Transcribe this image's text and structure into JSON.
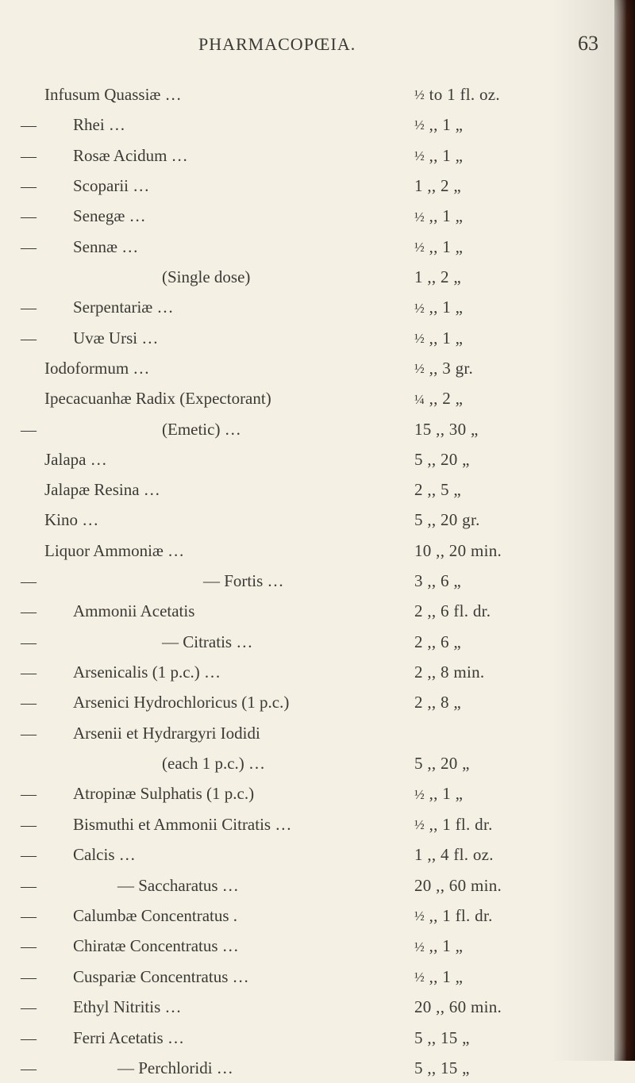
{
  "header": {
    "title": "PHARMACOPŒIA.",
    "pagenum": "63"
  },
  "entries": [
    {
      "left": "",
      "indent": 0,
      "name": "Infusum Quassiæ  …",
      "dose_from": "½",
      "dose_to": "1",
      "unit": "fl. oz."
    },
    {
      "left": "—",
      "indent": 1,
      "name": "Rhei  …",
      "dose_from": "½",
      "dose_to": "1",
      "unit": "„"
    },
    {
      "left": "—",
      "indent": 1,
      "name": "Rosæ Acidum  …",
      "dose_from": "½",
      "dose_to": "1",
      "unit": "„"
    },
    {
      "left": "—",
      "indent": 1,
      "name": "Scoparii  …",
      "dose_from": "1",
      "dose_to": "2",
      "unit": "„"
    },
    {
      "left": "—",
      "indent": 1,
      "name": "Senegæ  …",
      "dose_from": "½",
      "dose_to": "1",
      "unit": "„"
    },
    {
      "left": "—",
      "indent": 1,
      "name": "Sennæ  …",
      "dose_from": "½",
      "dose_to": "1",
      "unit": "„"
    },
    {
      "left": "",
      "indent": 3,
      "name": "(Single dose)",
      "dose_from": "1",
      "dose_to": "2",
      "unit": "„"
    },
    {
      "left": "—",
      "indent": 1,
      "name": "Serpentariæ  …",
      "dose_from": "½",
      "dose_to": "1",
      "unit": "„"
    },
    {
      "left": "—",
      "indent": 1,
      "name": "Uvæ Ursi  …",
      "dose_from": "½",
      "dose_to": "1",
      "unit": "„"
    },
    {
      "left": "",
      "indent": 0,
      "name": "Iodoformum  …",
      "dose_from": "½",
      "dose_to": "3",
      "unit": "gr."
    },
    {
      "left": "",
      "indent": 0,
      "name": "Ipecacuanhæ Radix (Expectorant)",
      "dose_from": "¼",
      "dose_to": "2",
      "unit": "„"
    },
    {
      "left": "—",
      "indent": 3,
      "name": "(Emetic)  …",
      "dose_from": "15",
      "dose_to": "30",
      "unit": "„"
    },
    {
      "left": "",
      "indent": 0,
      "name": "Jalapa  …",
      "dose_from": "5",
      "dose_to": "20",
      "unit": "„"
    },
    {
      "left": "",
      "indent": 0,
      "name": "Jalapæ Resina  …",
      "dose_from": "2",
      "dose_to": "5",
      "unit": "„"
    },
    {
      "left": "",
      "indent": 0,
      "name": "Kino  …",
      "dose_from": "5",
      "dose_to": "20",
      "unit": "gr."
    },
    {
      "left": "",
      "indent": 0,
      "name": "Liquor Ammoniæ  …",
      "dose_from": "10",
      "dose_to": "20",
      "unit": "min."
    },
    {
      "left": "—",
      "indent": 4,
      "name": "—   Fortis  …",
      "dose_from": "3",
      "dose_to": "6",
      "unit": "„"
    },
    {
      "left": "—",
      "indent": 1,
      "name": "Ammonii Acetatis",
      "dose_from": "2",
      "dose_to": "6",
      "unit": "fl. dr."
    },
    {
      "left": "—",
      "indent": 3,
      "name": "—   Citratis  …",
      "dose_from": "2",
      "dose_to": "6",
      "unit": "„"
    },
    {
      "left": "—",
      "indent": 1,
      "name": "Arsenicalis (1 p.c.)  …",
      "dose_from": "2",
      "dose_to": "8",
      "unit": "min."
    },
    {
      "left": "—",
      "indent": 1,
      "name": "Arsenici Hydrochloricus (1 p.c.)",
      "dose_from": "2",
      "dose_to": "8",
      "unit": "„"
    },
    {
      "left": "—",
      "indent": 1,
      "name": "Arsenii  et  Hydrargyri  Iodidi",
      "dose_from": "",
      "dose_to": "",
      "unit": ""
    },
    {
      "left": "",
      "indent": 3,
      "name": "(each 1 p.c.)  …",
      "dose_from": "5",
      "dose_to": "20",
      "unit": "„"
    },
    {
      "left": "—",
      "indent": 1,
      "name": "Atropinæ Sulphatis (1 p.c.)",
      "dose_from": "½",
      "dose_to": "1",
      "unit": "„"
    },
    {
      "left": "—",
      "indent": 1,
      "name": "Bismuthi et Ammonii Citratis  …",
      "dose_from": "½",
      "dose_to": "1",
      "unit": "fl. dr."
    },
    {
      "left": "—",
      "indent": 1,
      "name": "Calcis  …",
      "dose_from": "1",
      "dose_to": "4",
      "unit": "fl. oz."
    },
    {
      "left": "—",
      "indent": 2,
      "name": "—   Saccharatus  …",
      "dose_from": "20",
      "dose_to": "60",
      "unit": "min."
    },
    {
      "left": "—",
      "indent": 1,
      "name": "Calumbæ Concentratus  .",
      "dose_from": "½",
      "dose_to": "1",
      "unit": "fl. dr."
    },
    {
      "left": "—",
      "indent": 1,
      "name": "Chiratæ Concentratus  …",
      "dose_from": "½",
      "dose_to": "1",
      "unit": "„"
    },
    {
      "left": "—",
      "indent": 1,
      "name": "Cuspariæ Concentratus  …",
      "dose_from": "½",
      "dose_to": "1",
      "unit": "„"
    },
    {
      "left": "—",
      "indent": 1,
      "name": "Ethyl Nitritis  …",
      "dose_from": "20",
      "dose_to": "60",
      "unit": "min."
    },
    {
      "left": "—",
      "indent": 1,
      "name": "Ferri Acetatis  …",
      "dose_from": "5",
      "dose_to": "15",
      "unit": "„"
    },
    {
      "left": "—",
      "indent": 2,
      "name": "—   Perchloridi  …",
      "dose_from": "5",
      "dose_to": "15",
      "unit": "„"
    }
  ],
  "to_label": "to",
  "dittos": ",,"
}
